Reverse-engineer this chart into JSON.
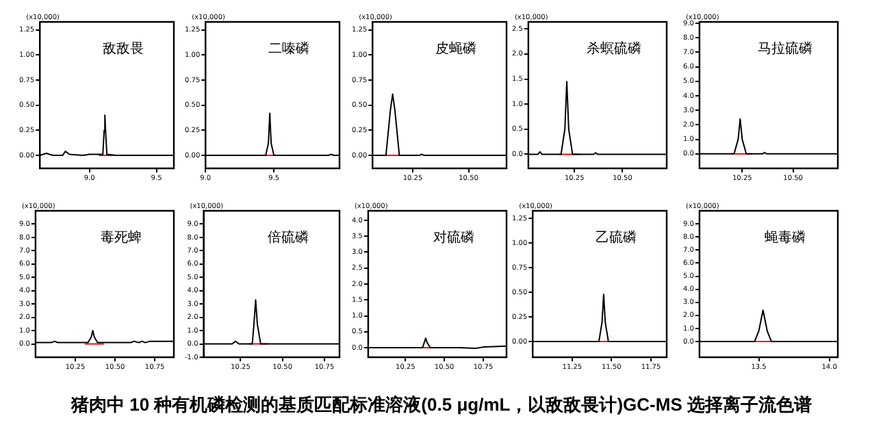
{
  "chart_data": [
    {
      "type": "line",
      "title": "敌敌畏",
      "ylabel": "(x10,000)",
      "marker": "none",
      "grid": false,
      "xlim": [
        8.63,
        9.63
      ],
      "xticks": [
        {
          "value": 9.0,
          "label": "9.0"
        },
        {
          "value": 9.5,
          "label": "9.5"
        }
      ],
      "ylim": [
        -0.13,
        1.33
      ],
      "yticks": [
        {
          "value": 0,
          "label": "0.00"
        },
        {
          "value": 0.25,
          "label": "0.25"
        },
        {
          "value": 0.5,
          "label": "0.50"
        },
        {
          "value": 0.75,
          "label": "0.75"
        },
        {
          "value": 1,
          "label": "1.00"
        },
        {
          "value": 1.25,
          "label": "1.25"
        }
      ],
      "annotations": [
        "猪肉中 10 种有机磷检测的基质匹配标准溶液(0.5 μg/mL，以敌敌畏计)GC-MS 选择离子流色谱"
      ],
      "series": [
        {
          "color": "#000000",
          "x": [
            8.63,
            8.68,
            8.7,
            8.73,
            8.8,
            8.82,
            8.85,
            8.95,
            9.0,
            9.1,
            9.11,
            9.115,
            9.12,
            9.13,
            9.2,
            9.63
          ],
          "values": [
            0,
            0.02,
            0.01,
            0,
            0,
            0.04,
            0.01,
            0,
            0.01,
            0.01,
            0.25,
            0.4,
            0.25,
            0.01,
            0,
            0
          ]
        },
        {
          "color": "#ff0000",
          "x": [
            9.07,
            9.18
          ],
          "values": [
            0,
            0
          ]
        }
      ]
    },
    {
      "type": "line",
      "title": "二嗪磷",
      "ylabel": "(x10,000)",
      "marker": "none",
      "grid": false,
      "xlim": [
        9.0,
        9.98
      ],
      "xticks": [
        {
          "value": 9.0,
          "label": "9.0"
        },
        {
          "value": 9.5,
          "label": "9.5"
        }
      ],
      "ylim": [
        -0.13,
        1.33
      ],
      "yticks": [
        {
          "value": 0,
          "label": "0.00"
        },
        {
          "value": 0.25,
          "label": "0.25"
        },
        {
          "value": 0.5,
          "label": "0.50"
        },
        {
          "value": 0.75,
          "label": "0.75"
        },
        {
          "value": 1,
          "label": "1.00"
        },
        {
          "value": 1.25,
          "label": "1.25"
        }
      ],
      "series": [
        {
          "color": "#000000",
          "x": [
            9.0,
            9.44,
            9.46,
            9.47,
            9.48,
            9.5,
            9.9,
            9.92,
            9.94,
            9.98
          ],
          "values": [
            0,
            0,
            0.12,
            0.42,
            0.12,
            0,
            0,
            0.01,
            0,
            0
          ]
        },
        {
          "color": "#ff0000",
          "x": [
            9.43,
            9.56
          ],
          "values": [
            0,
            0
          ]
        }
      ]
    },
    {
      "type": "line",
      "title": "皮蝇磷",
      "ylabel": "(x10,000)",
      "marker": "none",
      "grid": false,
      "xlim": [
        10.07,
        10.67
      ],
      "xticks": [
        {
          "value": 10.25,
          "label": "10.25"
        },
        {
          "value": 10.5,
          "label": "10.50"
        }
      ],
      "ylim": [
        -0.13,
        1.33
      ],
      "yticks": [
        {
          "value": 0,
          "label": "0.00"
        },
        {
          "value": 0.25,
          "label": "0.25"
        },
        {
          "value": 0.5,
          "label": "0.50"
        },
        {
          "value": 0.75,
          "label": "0.75"
        },
        {
          "value": 1,
          "label": "1.00"
        },
        {
          "value": 1.25,
          "label": "1.25"
        }
      ],
      "series": [
        {
          "color": "#000000",
          "x": [
            10.07,
            10.13,
            10.15,
            10.16,
            10.17,
            10.19,
            10.28,
            10.29,
            10.3,
            10.67
          ],
          "values": [
            0,
            0,
            0.45,
            0.61,
            0.45,
            0,
            0,
            0.01,
            0,
            0
          ]
        },
        {
          "color": "#ff0000",
          "x": [
            10.12,
            10.21
          ],
          "values": [
            0,
            0
          ]
        }
      ]
    },
    {
      "type": "line",
      "title": "杀螟硫磷",
      "ylabel": "(x10,000)",
      "marker": "none",
      "grid": false,
      "xlim": [
        10.01,
        10.73
      ],
      "xticks": [
        {
          "value": 10.25,
          "label": "10.25"
        },
        {
          "value": 10.5,
          "label": "10.50"
        }
      ],
      "ylim": [
        -0.28,
        2.64
      ],
      "yticks": [
        {
          "value": 0,
          "label": "0.0"
        },
        {
          "value": 0.5,
          "label": "0.5"
        },
        {
          "value": 1,
          "label": "1.0"
        },
        {
          "value": 1.5,
          "label": "1.5"
        },
        {
          "value": 2,
          "label": "2.0"
        },
        {
          "value": 2.5,
          "label": "2.5"
        }
      ],
      "series": [
        {
          "color": "#000000",
          "x": [
            10.01,
            10.06,
            10.07,
            10.08,
            10.18,
            10.2,
            10.21,
            10.22,
            10.24,
            10.35,
            10.36,
            10.37,
            10.73
          ],
          "values": [
            0,
            0,
            0.05,
            0,
            0,
            0.5,
            1.45,
            0.5,
            0,
            0,
            0.03,
            0,
            0
          ]
        },
        {
          "color": "#ff0000",
          "x": [
            10.17,
            10.28
          ],
          "values": [
            0,
            0
          ]
        }
      ]
    },
    {
      "type": "line",
      "title": "马拉硫磷",
      "ylabel": "(x10,000)",
      "marker": "none",
      "grid": false,
      "xlim": [
        10.04,
        10.72
      ],
      "xticks": [
        {
          "value": 10.25,
          "label": "10.25"
        },
        {
          "value": 10.5,
          "label": "10.50"
        }
      ],
      "ylim": [
        -1.0,
        9.1
      ],
      "yticks": [
        {
          "value": 0,
          "label": "0.0"
        },
        {
          "value": 1,
          "label": "1.0"
        },
        {
          "value": 2,
          "label": "2.0"
        },
        {
          "value": 3,
          "label": "3.0"
        },
        {
          "value": 4,
          "label": "4.0"
        },
        {
          "value": 5,
          "label": "5.0"
        },
        {
          "value": 6,
          "label": "6.0"
        },
        {
          "value": 7,
          "label": "7.0"
        },
        {
          "value": 8,
          "label": "8.0"
        },
        {
          "value": 9,
          "label": "9.0"
        }
      ],
      "series": [
        {
          "color": "#000000",
          "x": [
            10.04,
            10.21,
            10.23,
            10.24,
            10.25,
            10.27,
            10.35,
            10.36,
            10.37,
            10.72
          ],
          "values": [
            0,
            0,
            1.0,
            2.4,
            1.0,
            0,
            0,
            0.1,
            0,
            0
          ]
        },
        {
          "color": "#ff0000",
          "x": [
            10.2,
            10.3
          ],
          "values": [
            0,
            0
          ]
        }
      ]
    },
    {
      "type": "line",
      "title": "毒死蜱",
      "ylabel": "(x10,000)",
      "marker": "none",
      "grid": false,
      "xlim": [
        10.0,
        10.87
      ],
      "xticks": [
        {
          "value": 10.25,
          "label": "10.25"
        },
        {
          "value": 10.5,
          "label": "10.50"
        },
        {
          "value": 10.75,
          "label": "10.75"
        }
      ],
      "ylim": [
        -1.0,
        10.0
      ],
      "yticks": [
        {
          "value": 0,
          "label": "0.0"
        },
        {
          "value": 1,
          "label": "1.0"
        },
        {
          "value": 2,
          "label": "2.0"
        },
        {
          "value": 3,
          "label": "3.0"
        },
        {
          "value": 4,
          "label": "4.0"
        },
        {
          "value": 5,
          "label": "5.0"
        },
        {
          "value": 6,
          "label": "6.0"
        },
        {
          "value": 7,
          "label": "7.0"
        },
        {
          "value": 8,
          "label": "8.0"
        },
        {
          "value": 9,
          "label": "9.0"
        }
      ],
      "series": [
        {
          "color": "#000000",
          "x": [
            10.0,
            10.1,
            10.12,
            10.14,
            10.33,
            10.35,
            10.36,
            10.37,
            10.39,
            10.6,
            10.62,
            10.65,
            10.67,
            10.69,
            10.72,
            10.75,
            10.87
          ],
          "values": [
            0.1,
            0.1,
            0.2,
            0.1,
            0.1,
            0.5,
            1.0,
            0.5,
            0.1,
            0.1,
            0.2,
            0.1,
            0.2,
            0.1,
            0.2,
            0.2,
            0.2
          ]
        },
        {
          "color": "#ff0000",
          "x": [
            10.31,
            10.43
          ],
          "values": [
            0,
            0
          ]
        }
      ]
    },
    {
      "type": "line",
      "title": "倍硫磷",
      "ylabel": "(x10,000)",
      "marker": "none",
      "grid": false,
      "xlim": [
        10.03,
        10.84
      ],
      "xticks": [
        {
          "value": 10.25,
          "label": "10.25"
        },
        {
          "value": 10.5,
          "label": "10.50"
        },
        {
          "value": 10.75,
          "label": "10.75"
        }
      ],
      "ylim": [
        -1.0,
        10.0
      ],
      "yticks": [
        {
          "value": -1,
          "label": "-1.0"
        },
        {
          "value": 0,
          "label": "0.0"
        },
        {
          "value": 1,
          "label": "1.0"
        },
        {
          "value": 2,
          "label": "2.0"
        },
        {
          "value": 3,
          "label": "3.0"
        },
        {
          "value": 4,
          "label": "4.0"
        },
        {
          "value": 5,
          "label": "5.0"
        },
        {
          "value": 6,
          "label": "6.0"
        },
        {
          "value": 7,
          "label": "7.0"
        },
        {
          "value": 8,
          "label": "8.0"
        },
        {
          "value": 9,
          "label": "9.0"
        }
      ],
      "series": [
        {
          "color": "#000000",
          "x": [
            10.03,
            10.2,
            10.22,
            10.24,
            10.32,
            10.33,
            10.34,
            10.35,
            10.37,
            10.84
          ],
          "values": [
            0,
            0,
            0.2,
            0,
            0,
            1.5,
            3.3,
            1.5,
            0,
            0
          ]
        },
        {
          "color": "#ff0000",
          "x": [
            10.3,
            10.41
          ],
          "values": [
            0,
            0
          ]
        }
      ]
    },
    {
      "type": "line",
      "title": "对硫磷",
      "ylabel": "(x10,000)",
      "marker": "none",
      "grid": false,
      "xlim": [
        10.01,
        10.9
      ],
      "xticks": [
        {
          "value": 10.25,
          "label": "10.25"
        },
        {
          "value": 10.5,
          "label": "10.50"
        },
        {
          "value": 10.75,
          "label": "10.75"
        }
      ],
      "ylim": [
        -0.3,
        4.3
      ],
      "yticks": [
        {
          "value": 0,
          "label": "0.0"
        },
        {
          "value": 0.5,
          "label": "0.5"
        },
        {
          "value": 1,
          "label": "1.0"
        },
        {
          "value": 1.5,
          "label": "1.5"
        },
        {
          "value": 2,
          "label": "2.0"
        },
        {
          "value": 2.5,
          "label": "2.5"
        },
        {
          "value": 3,
          "label": "3.0"
        },
        {
          "value": 3.5,
          "label": "3.5"
        },
        {
          "value": 4,
          "label": "4.0"
        }
      ],
      "series": [
        {
          "color": "#000000",
          "x": [
            10.01,
            10.1,
            10.36,
            10.37,
            10.38,
            10.39,
            10.41,
            10.6,
            10.7,
            10.75,
            10.9
          ],
          "values": [
            0,
            0,
            0,
            0.15,
            0.3,
            0.15,
            0,
            0,
            -0.02,
            0.02,
            0.05
          ]
        },
        {
          "color": "#ff0000",
          "x": [
            10.35,
            10.45
          ],
          "values": [
            0,
            0
          ]
        }
      ]
    },
    {
      "type": "line",
      "title": "乙硫磷",
      "ylabel": "(x10,000)",
      "marker": "none",
      "grid": false,
      "xlim": [
        11.0,
        11.85
      ],
      "xticks": [
        {
          "value": 11.25,
          "label": "11.25"
        },
        {
          "value": 11.5,
          "label": "11.50"
        },
        {
          "value": 11.75,
          "label": "11.75"
        }
      ],
      "ylim": [
        -0.16,
        1.33
      ],
      "yticks": [
        {
          "value": 0,
          "label": "0.00"
        },
        {
          "value": 0.25,
          "label": "0.25"
        },
        {
          "value": 0.5,
          "label": "0.50"
        },
        {
          "value": 0.75,
          "label": "0.75"
        },
        {
          "value": 1,
          "label": "1.00"
        },
        {
          "value": 1.25,
          "label": "1.25"
        }
      ],
      "series": [
        {
          "color": "#000000",
          "x": [
            11.0,
            11.42,
            11.44,
            11.45,
            11.46,
            11.48,
            11.85
          ],
          "values": [
            0,
            0,
            0.2,
            0.48,
            0.2,
            0,
            0
          ]
        },
        {
          "color": "#ff0000",
          "x": [
            11.4,
            11.51
          ],
          "values": [
            0,
            0
          ]
        }
      ]
    },
    {
      "type": "line",
      "title": "蝇毒磷",
      "ylabel": "(x10,000)",
      "marker": "none",
      "grid": false,
      "xlim": [
        13.08,
        14.06
      ],
      "xticks": [
        {
          "value": 13.5,
          "label": "13.5"
        },
        {
          "value": 14.0,
          "label": "14.0"
        }
      ],
      "ylim": [
        -1.2,
        10.0
      ],
      "yticks": [
        {
          "value": 0,
          "label": "0.0"
        },
        {
          "value": 1,
          "label": "1.0"
        },
        {
          "value": 2,
          "label": "2.0"
        },
        {
          "value": 3,
          "label": "3.0"
        },
        {
          "value": 4,
          "label": "4.0"
        },
        {
          "value": 5,
          "label": "5.0"
        },
        {
          "value": 6,
          "label": "6.0"
        },
        {
          "value": 7,
          "label": "7.0"
        },
        {
          "value": 8,
          "label": "8.0"
        },
        {
          "value": 9,
          "label": "9.0"
        }
      ],
      "series": [
        {
          "color": "#000000",
          "x": [
            13.08,
            13.47,
            13.5,
            13.53,
            13.56,
            13.59,
            14.06
          ],
          "values": [
            0,
            0,
            0.8,
            2.4,
            0.8,
            0,
            0
          ]
        },
        {
          "color": "#ff0000",
          "x": [
            13.44,
            13.66
          ],
          "values": [
            0,
            0
          ]
        }
      ]
    }
  ]
}
